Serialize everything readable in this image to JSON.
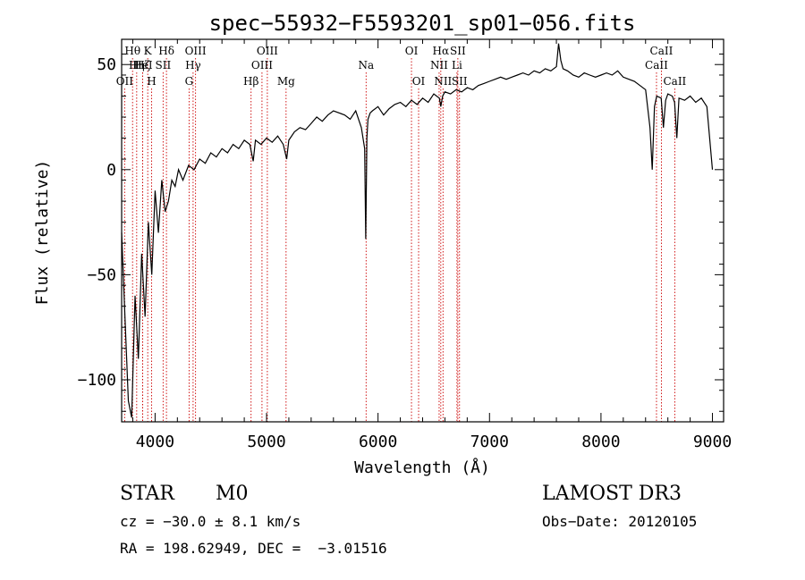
{
  "chart_data": {
    "type": "line",
    "title": "spec−55932−F5593201_sp01−056.fits",
    "xlabel": "Wavelength (Å)",
    "ylabel": "Flux (relative)",
    "xlim": [
      3700,
      9100
    ],
    "ylim": [
      -120,
      62
    ],
    "xticks": [
      4000,
      5000,
      6000,
      7000,
      8000,
      9000
    ],
    "xtick_labels": [
      "4000",
      "5000",
      "6000",
      "7000",
      "8000",
      "9000"
    ],
    "yticks": [
      -100,
      -50,
      0,
      50
    ],
    "ytick_labels": [
      "−100",
      "−50",
      "0",
      "50"
    ],
    "series": [
      {
        "name": "flux",
        "x": [
          3700,
          3730,
          3760,
          3790,
          3820,
          3850,
          3880,
          3910,
          3940,
          3970,
          4000,
          4030,
          4060,
          4090,
          4120,
          4150,
          4180,
          4210,
          4250,
          4300,
          4350,
          4400,
          4450,
          4500,
          4550,
          4600,
          4650,
          4700,
          4750,
          4800,
          4850,
          4880,
          4900,
          4950,
          5000,
          5050,
          5100,
          5150,
          5180,
          5200,
          5250,
          5300,
          5350,
          5400,
          5450,
          5500,
          5550,
          5600,
          5650,
          5700,
          5750,
          5800,
          5850,
          5880,
          5890,
          5900,
          5910,
          5930,
          5950,
          6000,
          6050,
          6100,
          6150,
          6200,
          6250,
          6300,
          6350,
          6400,
          6450,
          6500,
          6550,
          6563,
          6580,
          6600,
          6650,
          6700,
          6750,
          6800,
          6850,
          6900,
          6950,
          7000,
          7050,
          7100,
          7150,
          7200,
          7250,
          7300,
          7350,
          7400,
          7450,
          7500,
          7550,
          7600,
          7620,
          7640,
          7660,
          7700,
          7750,
          7800,
          7850,
          7900,
          7950,
          8000,
          8050,
          8100,
          8150,
          8200,
          8250,
          8300,
          8350,
          8400,
          8440,
          8460,
          8480,
          8500,
          8540,
          8560,
          8580,
          8600,
          8640,
          8660,
          8680,
          8700,
          8750,
          8800,
          8850,
          8900,
          8950,
          9000
        ],
        "y": [
          -30,
          -70,
          -110,
          -118,
          -60,
          -90,
          -40,
          -70,
          -25,
          -50,
          -10,
          -30,
          -5,
          -20,
          -15,
          -5,
          -8,
          0,
          -5,
          2,
          0,
          5,
          3,
          8,
          6,
          10,
          8,
          12,
          10,
          14,
          12,
          4,
          14,
          12,
          15,
          13,
          16,
          12,
          5,
          14,
          18,
          20,
          19,
          22,
          25,
          23,
          26,
          28,
          27,
          26,
          24,
          28,
          20,
          10,
          -33,
          15,
          24,
          27,
          28,
          30,
          26,
          29,
          31,
          32,
          30,
          33,
          31,
          34,
          32,
          36,
          34,
          30,
          35,
          37,
          36,
          38,
          37,
          39,
          38,
          40,
          41,
          42,
          43,
          44,
          43,
          44,
          45,
          46,
          45,
          47,
          46,
          48,
          47,
          49,
          60,
          52,
          48,
          47,
          45,
          44,
          46,
          45,
          44,
          45,
          46,
          45,
          47,
          44,
          43,
          42,
          40,
          38,
          20,
          0,
          30,
          35,
          34,
          20,
          33,
          36,
          35,
          32,
          15,
          34,
          33,
          35,
          32,
          34,
          30,
          0
        ]
      }
    ],
    "lines": [
      {
        "name": "Hθ",
        "wl": 3798,
        "row": 1
      },
      {
        "name": "Hη",
        "wl": 3835,
        "row": 2
      },
      {
        "name": "OII",
        "wl": 3727,
        "row": 3
      },
      {
        "name": "Hζ",
        "wl": 3889,
        "row": 2
      },
      {
        "name": "HeI",
        "wl": 3888,
        "row": 2
      },
      {
        "name": "K",
        "wl": 3934,
        "row": 1
      },
      {
        "name": "H",
        "wl": 3969,
        "row": 3
      },
      {
        "name": "SII",
        "wl": 4072,
        "row": 2
      },
      {
        "name": "Hδ",
        "wl": 4102,
        "row": 1
      },
      {
        "name": "G",
        "wl": 4305,
        "row": 3
      },
      {
        "name": "Hγ",
        "wl": 4341,
        "row": 2
      },
      {
        "name": "OIII",
        "wl": 4363,
        "row": 1
      },
      {
        "name": "Hβ",
        "wl": 4861,
        "row": 3
      },
      {
        "name": "OIII",
        "wl": 4959,
        "row": 2
      },
      {
        "name": "OIII",
        "wl": 5007,
        "row": 1
      },
      {
        "name": "Mg",
        "wl": 5175,
        "row": 3
      },
      {
        "name": "Na",
        "wl": 5893,
        "row": 2
      },
      {
        "name": "OI",
        "wl": 6300,
        "row": 1
      },
      {
        "name": "OI",
        "wl": 6364,
        "row": 3
      },
      {
        "name": "NII",
        "wl": 6548,
        "row": 2
      },
      {
        "name": "Hα",
        "wl": 6563,
        "row": 1
      },
      {
        "name": "NII",
        "wl": 6583,
        "row": 3
      },
      {
        "name": "SII",
        "wl": 6716,
        "row": 1
      },
      {
        "name": "Li",
        "wl": 6708,
        "row": 2
      },
      {
        "name": "SII",
        "wl": 6731,
        "row": 3
      },
      {
        "name": "CaII",
        "wl": 8498,
        "row": 2
      },
      {
        "name": "CaII",
        "wl": 8542,
        "row": 1
      },
      {
        "name": "CaII",
        "wl": 8662,
        "row": 3
      }
    ]
  },
  "info": {
    "class": "STAR",
    "subclass": "M0",
    "survey": "LAMOST DR3",
    "cz": "cz = −30.0 ± 8.1 km/s",
    "obs_date": "Obs−Date: 20120105",
    "radec": "RA = 198.62949, DEC =  −3.01516"
  },
  "colors": {
    "spectrum": "#000000",
    "line_marker": "#cc0000"
  }
}
